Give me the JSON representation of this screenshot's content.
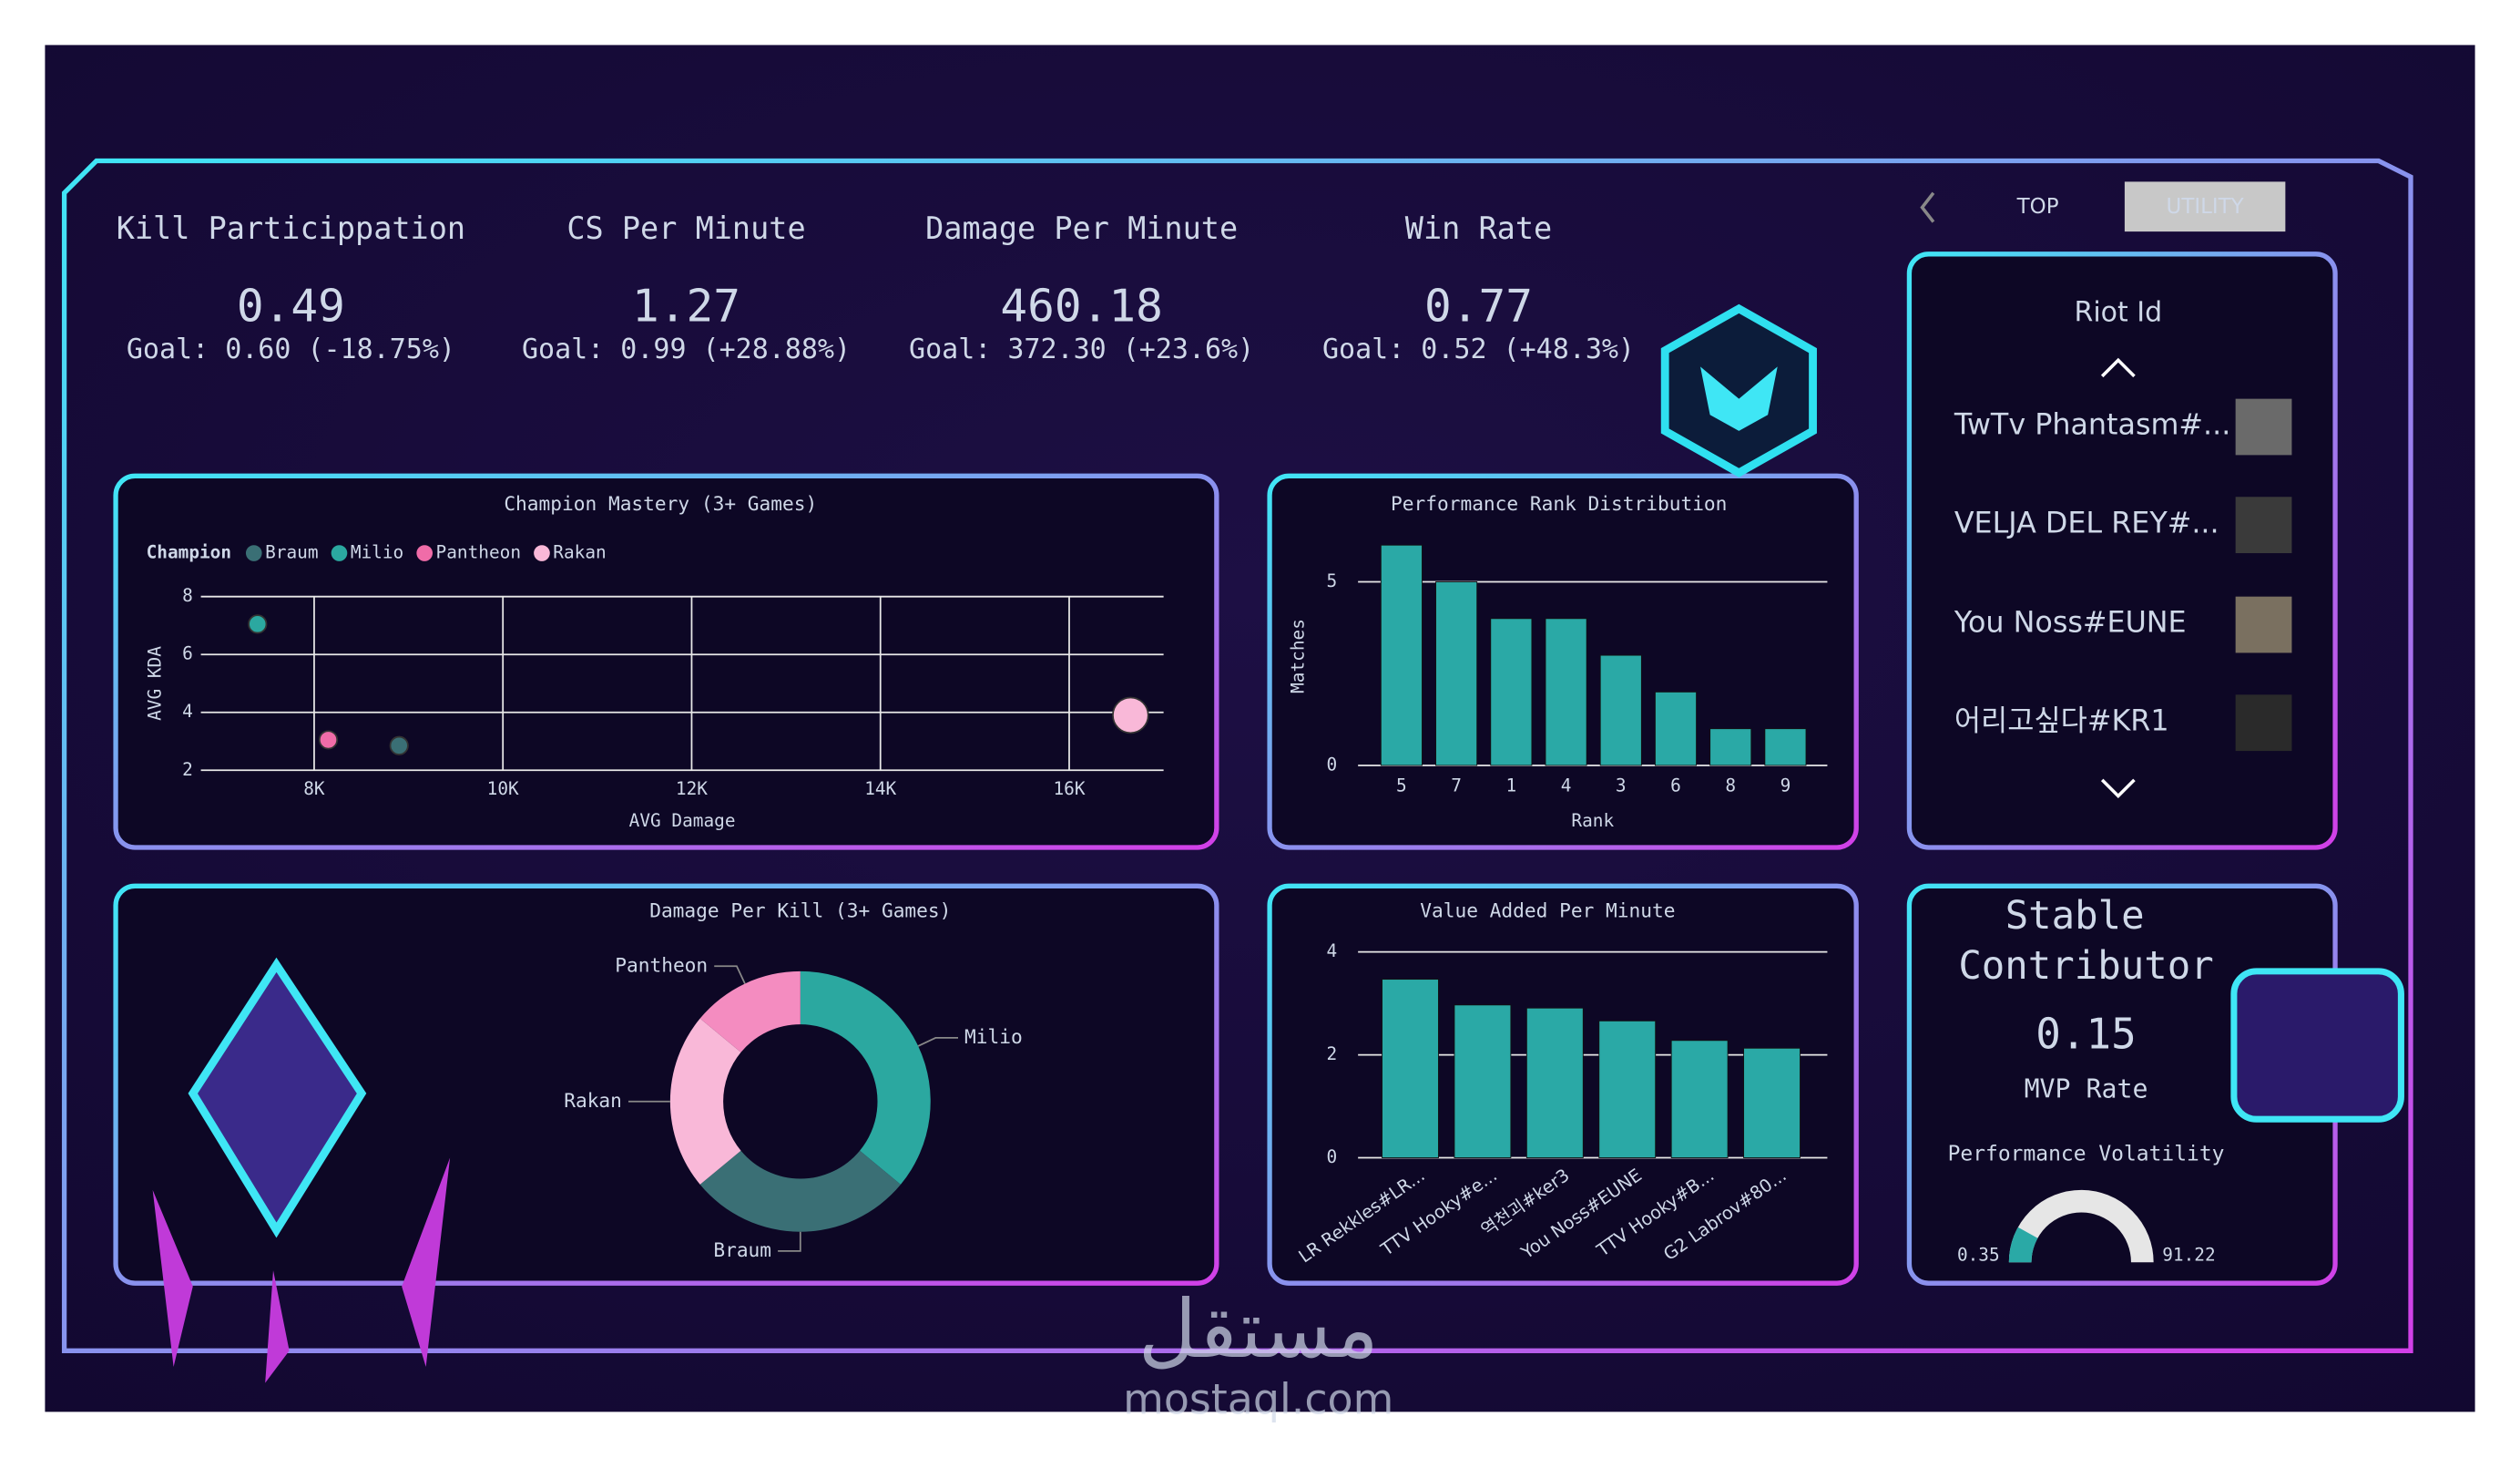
{
  "tabs": [
    "TOP",
    "UTILITY"
  ],
  "kpis": [
    {
      "title": "Kill Particippation",
      "value": "0.49",
      "goal": "Goal: 0.60 (-18.75%)",
      "color": "#e8232e"
    },
    {
      "title": "CS Per Minute",
      "value": "1.27",
      "goal": "Goal: 0.99 (+28.88%)",
      "color": "#3ee04a"
    },
    {
      "title": "Damage Per Minute",
      "value": "460.18",
      "goal": "Goal: 372.30 (+23.6%)",
      "color": "#3ee04a"
    },
    {
      "title": "Win Rate",
      "value": "0.77",
      "goal": "Goal: 0.52 (+48.3%)",
      "color": "#3ee04a"
    }
  ],
  "riot_id_panel": {
    "title": "Riot Id",
    "players": [
      "TwTv Phantasm#...",
      "VELJA DEL REY#...",
      "You Noss#EUNE",
      "어리고싶다#KR1"
    ]
  },
  "mvp_card": {
    "title_lines": [
      "Stable",
      "Contributor"
    ],
    "value": "0.15",
    "label": "MVP Rate"
  },
  "chart_data": [
    {
      "type": "scatter",
      "title": "Champion Mastery (3+ Games)",
      "legend_title": "Champion",
      "x_label": "AVG Damage",
      "y_label": "AVG KDA",
      "xlim": [
        6800,
        17000
      ],
      "xticks": [
        {
          "value": 8000,
          "label": "8K"
        },
        {
          "value": 10000,
          "label": "10K"
        },
        {
          "value": 12000,
          "label": "12K"
        },
        {
          "value": 14000,
          "label": "14K"
        },
        {
          "value": 16000,
          "label": "16K"
        }
      ],
      "ylim": [
        2,
        8
      ],
      "yticks": [
        2,
        4,
        6,
        8
      ],
      "grid": true,
      "series": [
        {
          "name": "Braum",
          "color": "#3a6f75",
          "x": [
            8900
          ],
          "values": [
            2.85
          ],
          "sizes": [
            1
          ]
        },
        {
          "name": "Milio",
          "color": "#2ba8a0",
          "x": [
            7400
          ],
          "values": [
            7.05
          ],
          "sizes": [
            1
          ]
        },
        {
          "name": "Pantheon",
          "color": "#f06ca8",
          "x": [
            8150
          ],
          "values": [
            3.05
          ],
          "sizes": [
            1
          ]
        },
        {
          "name": "Rakan",
          "color": "#f9b8d8",
          "x": [
            16650
          ],
          "values": [
            3.9
          ],
          "sizes": [
            4
          ]
        }
      ]
    },
    {
      "type": "bar",
      "title": "Performance Rank Distribution",
      "x_label": "Rank",
      "y_label": "Matches",
      "color": "#2aa9a6",
      "categories": [
        "5",
        "7",
        "1",
        "4",
        "3",
        "6",
        "8",
        "9"
      ],
      "values": [
        6,
        5,
        4,
        4,
        3,
        2,
        1,
        1
      ],
      "ylim": [
        0,
        6
      ],
      "yticks": [
        0,
        5
      ],
      "grid": true
    },
    {
      "type": "donut",
      "title": "Damage Per Kill (3+ Games)",
      "categories": [
        "Milio",
        "Braum",
        "Rakan",
        "Pantheon"
      ],
      "values": [
        36,
        28,
        22,
        14
      ],
      "colors": [
        "#2ba8a0",
        "#3a6f75",
        "#f9b8d8",
        "#f48cc0"
      ]
    },
    {
      "type": "bar",
      "title": "Value Added Per Minute",
      "color": "#2aa9a6",
      "categories": [
        "LR Rekkles#LR...",
        "TTV Hooky#e...",
        "역천괴#ker3",
        "You Noss#EUNE",
        "TTV Hooky#B...",
        "G2 Labrov#80..."
      ],
      "values": [
        3.47,
        2.97,
        2.91,
        2.66,
        2.28,
        2.13
      ],
      "ylim": [
        0,
        4
      ],
      "yticks": [
        0,
        2,
        4
      ],
      "grid": true
    },
    {
      "type": "gauge",
      "title": "Performance Volatility",
      "min": 0.35,
      "max": 91.22,
      "value": 15,
      "color": "#2aa9a6",
      "track_color": "#e6e6e6"
    }
  ],
  "watermark": [
    "مستقل",
    "mostaql.com"
  ]
}
